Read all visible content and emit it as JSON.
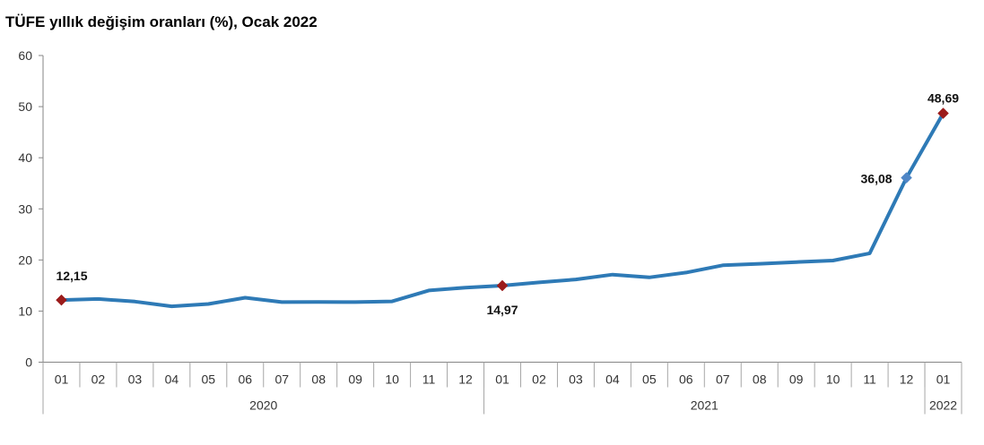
{
  "chart_data": {
    "type": "line",
    "title": "TÜFE yıllık değişim oranları (%), Ocak 2022",
    "xlabel": "",
    "ylabel": "",
    "ylim": [
      0,
      60
    ],
    "yticks": [
      "0",
      "10",
      "20",
      "30",
      "40",
      "50",
      "60"
    ],
    "categories": [
      "01",
      "02",
      "03",
      "04",
      "05",
      "06",
      "07",
      "08",
      "09",
      "10",
      "11",
      "12",
      "01",
      "02",
      "03",
      "04",
      "05",
      "06",
      "07",
      "08",
      "09",
      "10",
      "11",
      "12",
      "01"
    ],
    "year_groups": [
      {
        "label": "2020",
        "count": 12
      },
      {
        "label": "2021",
        "count": 12
      },
      {
        "label": "2022",
        "count": 1
      }
    ],
    "series": [
      {
        "values": [
          12.15,
          12.37,
          11.86,
          10.94,
          11.39,
          12.62,
          11.76,
          11.77,
          11.75,
          11.89,
          14.03,
          14.6,
          14.97,
          15.61,
          16.19,
          17.14,
          16.59,
          17.53,
          18.95,
          19.25,
          19.58,
          19.89,
          21.31,
          36.08,
          48.69
        ],
        "color": "#2e7ab6"
      }
    ],
    "data_labels": [
      {
        "index": 0,
        "text": "12,15"
      },
      {
        "index": 12,
        "text": "14,97"
      },
      {
        "index": 23,
        "text": "36,08"
      },
      {
        "index": 24,
        "text": "48,69"
      }
    ],
    "marker_colors": {
      "diamond": "#9b1b1b",
      "alt_diamond": "#4f86c6"
    },
    "grid": false
  }
}
